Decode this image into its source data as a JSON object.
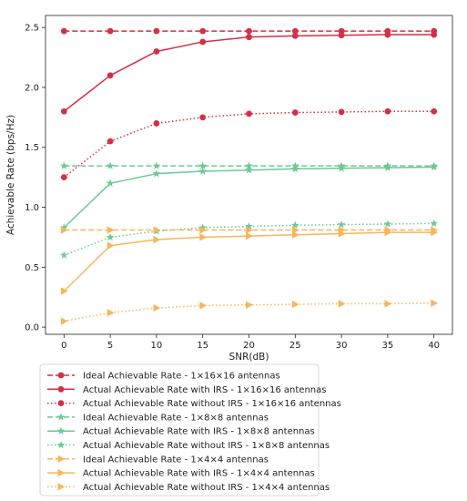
{
  "chart_data": {
    "type": "line",
    "title": "",
    "xlabel": "SNR(dB)",
    "ylabel": "Achievable Rate (bps/Hz)",
    "x": [
      0,
      5,
      10,
      15,
      20,
      25,
      30,
      35,
      40
    ],
    "xlim": [
      -2,
      42
    ],
    "ylim": [
      -0.06,
      2.6
    ],
    "x_ticks": [
      "0",
      "5",
      "10",
      "15",
      "20",
      "25",
      "30",
      "35",
      "40"
    ],
    "y_ticks": [
      "0.0",
      "0.5",
      "1.0",
      "1.5",
      "2.0",
      "2.5"
    ],
    "grid": false,
    "legend_position": "below",
    "series": [
      {
        "name": "Ideal Achievable Rate - 1×16×16 antennas",
        "color": "#d62f45",
        "line_style": "dashed",
        "marker": "circle",
        "values": [
          2.47,
          2.47,
          2.47,
          2.47,
          2.47,
          2.47,
          2.47,
          2.47,
          2.47
        ]
      },
      {
        "name": "Actual Achievable Rate with IRS - 1×16×16 antennas",
        "color": "#d62f45",
        "line_style": "solid",
        "marker": "circle",
        "values": [
          1.8,
          2.1,
          2.3,
          2.38,
          2.42,
          2.43,
          2.435,
          2.44,
          2.44
        ]
      },
      {
        "name": "Actual Achievable Rate without IRS - 1×16×16 antennas",
        "color": "#d62f45",
        "line_style": "dotted",
        "marker": "circle",
        "values": [
          1.25,
          1.55,
          1.7,
          1.75,
          1.78,
          1.79,
          1.795,
          1.8,
          1.8
        ]
      },
      {
        "name": "Ideal Achievable Rate - 1×8×8 antennas",
        "color": "#6cc995",
        "line_style": "dashed",
        "marker": "star",
        "values": [
          1.345,
          1.345,
          1.345,
          1.345,
          1.345,
          1.345,
          1.345,
          1.345,
          1.345
        ]
      },
      {
        "name": "Actual Achievable Rate with IRS - 1×8×8 antennas",
        "color": "#6cc995",
        "line_style": "solid",
        "marker": "star",
        "values": [
          0.83,
          1.2,
          1.28,
          1.3,
          1.31,
          1.32,
          1.325,
          1.33,
          1.335
        ]
      },
      {
        "name": "Actual Achievable Rate without IRS - 1×8×8 antennas",
        "color": "#6cc995",
        "line_style": "dotted",
        "marker": "star",
        "values": [
          0.6,
          0.75,
          0.8,
          0.83,
          0.84,
          0.85,
          0.855,
          0.86,
          0.865
        ]
      },
      {
        "name": "Ideal Achievable Rate - 1×4×4 antennas",
        "color": "#f6b65a",
        "line_style": "dashed",
        "marker": "triangle-right",
        "values": [
          0.81,
          0.81,
          0.81,
          0.81,
          0.81,
          0.81,
          0.81,
          0.81,
          0.81
        ]
      },
      {
        "name": "Actual Achievable Rate with IRS - 1×4×4 antennas",
        "color": "#f6b65a",
        "line_style": "solid",
        "marker": "triangle-right",
        "values": [
          0.3,
          0.68,
          0.73,
          0.75,
          0.76,
          0.77,
          0.78,
          0.79,
          0.79
        ]
      },
      {
        "name": "Actual Achievable Rate without IRS - 1×4×4 antennas",
        "color": "#f6b65a",
        "line_style": "dotted",
        "marker": "triangle-right",
        "values": [
          0.05,
          0.12,
          0.16,
          0.18,
          0.185,
          0.19,
          0.195,
          0.195,
          0.2
        ]
      }
    ]
  }
}
